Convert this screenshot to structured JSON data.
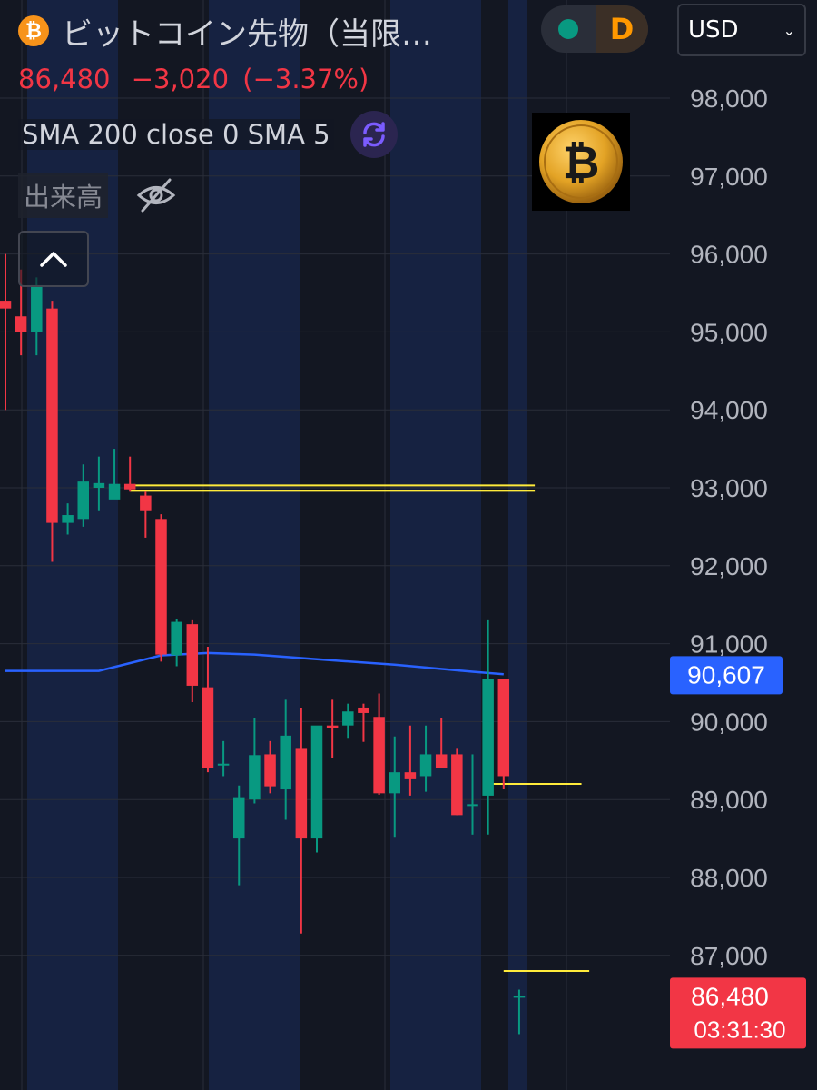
{
  "header": {
    "coin_icon_glyph": "₿",
    "symbol_title": "ビットコイン先物（当限…",
    "live_status": "green",
    "interval_badge": "D",
    "currency": "USD",
    "last_price": "86,480",
    "change": "−3,020",
    "change_pct": "(−3.37%)",
    "indicator_label": "SMA 200 close 0 SMA 5",
    "volume_label": "出来高"
  },
  "colors": {
    "background": "#131722",
    "up": "#089981",
    "down": "#f23645",
    "sma": "#2962ff",
    "level_line": "#ffeb3b",
    "session_shade": "#182446",
    "live_dot": "#089981",
    "interval_badge": "#ff9800"
  },
  "chart_data": {
    "type": "candlestick",
    "y_axis": {
      "min": 86000,
      "max": 98500,
      "tick_labels": [
        "98,000",
        "97,000",
        "96,000",
        "95,000",
        "94,000",
        "93,000",
        "92,000",
        "91,000",
        "90,000",
        "89,000",
        "88,000",
        "87,000"
      ]
    },
    "candles": [
      {
        "o": 95400,
        "h": 96000,
        "l": 94000,
        "c": 95300
      },
      {
        "o": 95200,
        "h": 95800,
        "l": 94700,
        "c": 95000
      },
      {
        "o": 95000,
        "h": 95700,
        "l": 94700,
        "c": 95600
      },
      {
        "o": 95300,
        "h": 95400,
        "l": 92050,
        "c": 92550
      },
      {
        "o": 92550,
        "h": 92800,
        "l": 92400,
        "c": 92650
      },
      {
        "o": 92600,
        "h": 93300,
        "l": 92500,
        "c": 93080
      },
      {
        "o": 93000,
        "h": 93400,
        "l": 92700,
        "c": 93060
      },
      {
        "o": 92850,
        "h": 93500,
        "l": 92950,
        "c": 93050
      },
      {
        "o": 93050,
        "h": 93400,
        "l": 92950,
        "c": 92980
      },
      {
        "o": 92900,
        "h": 92950,
        "l": 92360,
        "c": 92700
      },
      {
        "o": 92600,
        "h": 92660,
        "l": 90770,
        "c": 90860
      },
      {
        "o": 90850,
        "h": 91320,
        "l": 90710,
        "c": 91280
      },
      {
        "o": 91250,
        "h": 91300,
        "l": 90250,
        "c": 90460
      },
      {
        "o": 90440,
        "h": 90960,
        "l": 89350,
        "c": 89400
      },
      {
        "o": 89450,
        "h": 89750,
        "l": 89300,
        "c": 89460
      },
      {
        "o": 88500,
        "h": 89180,
        "l": 87900,
        "c": 89030
      },
      {
        "o": 89000,
        "h": 90050,
        "l": 88950,
        "c": 89570
      },
      {
        "o": 89580,
        "h": 89750,
        "l": 89080,
        "c": 89170
      },
      {
        "o": 89130,
        "h": 90280,
        "l": 88740,
        "c": 89820
      },
      {
        "o": 89650,
        "h": 90180,
        "l": 87280,
        "c": 88500
      },
      {
        "o": 88500,
        "h": 89920,
        "l": 88320,
        "c": 89950
      },
      {
        "o": 89950,
        "h": 90280,
        "l": 89530,
        "c": 89920
      },
      {
        "o": 89950,
        "h": 90230,
        "l": 89780,
        "c": 90130
      },
      {
        "o": 90180,
        "h": 90230,
        "l": 89740,
        "c": 90110
      },
      {
        "o": 90060,
        "h": 90360,
        "l": 89060,
        "c": 89080
      },
      {
        "o": 89080,
        "h": 89810,
        "l": 88510,
        "c": 89350
      },
      {
        "o": 89350,
        "h": 89950,
        "l": 89050,
        "c": 89260
      },
      {
        "o": 89300,
        "h": 89950,
        "l": 89100,
        "c": 89580
      },
      {
        "o": 89580,
        "h": 90050,
        "l": 89400,
        "c": 89400
      },
      {
        "o": 89580,
        "h": 89650,
        "l": 88800,
        "c": 88800
      },
      {
        "o": 88930,
        "h": 89580,
        "l": 88550,
        "c": 88940
      },
      {
        "o": 89050,
        "h": 91300,
        "l": 88550,
        "c": 90550
      },
      {
        "o": 90550,
        "h": 90550,
        "l": 89130,
        "c": 89300
      },
      {
        "o": 86480,
        "h": 86560,
        "l": 85990,
        "c": 86480
      }
    ],
    "sma200": [
      [
        0,
        90650
      ],
      [
        6,
        90650
      ],
      [
        10,
        90850
      ],
      [
        13,
        90880
      ],
      [
        16,
        90860
      ],
      [
        20,
        90800
      ],
      [
        25,
        90730
      ],
      [
        30,
        90640
      ],
      [
        32,
        90607
      ]
    ],
    "level_lines": [
      {
        "y": 93030,
        "from_candle": 8,
        "to_candle": 34
      },
      {
        "y": 92960,
        "from_candle": 8,
        "to_candle": 34
      },
      {
        "y": 89200,
        "from_candle": 31,
        "to_candle": 37
      },
      {
        "y": 86800,
        "from_candle": 32,
        "to_candle": 37.5
      }
    ],
    "price_labels": [
      {
        "value": 90607,
        "text": "90,607",
        "kind": "sma"
      },
      {
        "value": 86480,
        "text": "86,480",
        "subtext": "03:31:30",
        "kind": "last"
      }
    ],
    "grid": true
  }
}
